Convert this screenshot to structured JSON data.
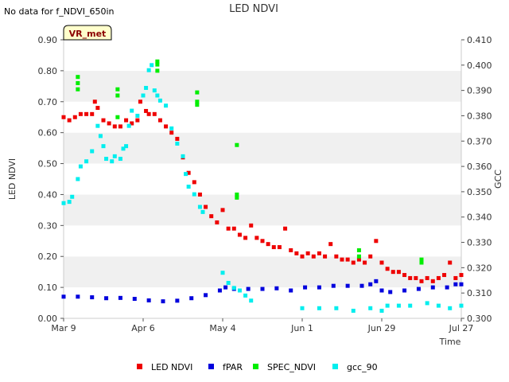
{
  "corner_note": "No data for f_NDVI_650in",
  "chart_data": {
    "type": "scatter",
    "title": "LED NDVI",
    "xlabel": "Time",
    "ylabel": "LED NDVI",
    "y2label": "GCC",
    "badge": "VR_met",
    "ylim": [
      0.0,
      0.9
    ],
    "y2lim": [
      0.3,
      0.41
    ],
    "xlim": [
      0,
      140
    ],
    "x_ticks": [
      {
        "label": "Mar 9",
        "day": 0
      },
      {
        "label": "Apr 6",
        "day": 28
      },
      {
        "label": "May 4",
        "day": 56
      },
      {
        "label": "Jun 1",
        "day": 84
      },
      {
        "label": "Jun 29",
        "day": 112
      },
      {
        "label": "Jul 27",
        "day": 140
      }
    ],
    "y_ticks": [
      "0.00",
      "0.10",
      "0.20",
      "0.30",
      "0.40",
      "0.50",
      "0.60",
      "0.70",
      "0.80",
      "0.90"
    ],
    "y2_ticks": [
      "0.300",
      "0.310",
      "0.320",
      "0.330",
      "0.340",
      "0.350",
      "0.360",
      "0.370",
      "0.380",
      "0.390",
      "0.400",
      "0.410"
    ],
    "series": [
      {
        "name": "LED NDVI",
        "color": "#ee0000",
        "axis": "left",
        "points": [
          [
            0,
            0.65
          ],
          [
            2,
            0.64
          ],
          [
            4,
            0.65
          ],
          [
            6,
            0.66
          ],
          [
            8,
            0.66
          ],
          [
            10,
            0.66
          ],
          [
            11,
            0.7
          ],
          [
            12,
            0.68
          ],
          [
            14,
            0.64
          ],
          [
            16,
            0.63
          ],
          [
            18,
            0.62
          ],
          [
            20,
            0.62
          ],
          [
            22,
            0.64
          ],
          [
            24,
            0.63
          ],
          [
            26,
            0.64
          ],
          [
            27,
            0.7
          ],
          [
            29,
            0.67
          ],
          [
            30,
            0.66
          ],
          [
            32,
            0.66
          ],
          [
            34,
            0.64
          ],
          [
            36,
            0.62
          ],
          [
            38,
            0.6
          ],
          [
            40,
            0.58
          ],
          [
            42,
            0.52
          ],
          [
            44,
            0.47
          ],
          [
            46,
            0.44
          ],
          [
            48,
            0.4
          ],
          [
            50,
            0.36
          ],
          [
            52,
            0.33
          ],
          [
            54,
            0.31
          ],
          [
            56,
            0.35
          ],
          [
            58,
            0.29
          ],
          [
            60,
            0.29
          ],
          [
            62,
            0.27
          ],
          [
            64,
            0.26
          ],
          [
            66,
            0.3
          ],
          [
            68,
            0.26
          ],
          [
            70,
            0.25
          ],
          [
            72,
            0.24
          ],
          [
            74,
            0.23
          ],
          [
            76,
            0.23
          ],
          [
            78,
            0.29
          ],
          [
            80,
            0.22
          ],
          [
            82,
            0.21
          ],
          [
            84,
            0.2
          ],
          [
            86,
            0.21
          ],
          [
            88,
            0.2
          ],
          [
            90,
            0.21
          ],
          [
            92,
            0.2
          ],
          [
            94,
            0.24
          ],
          [
            96,
            0.2
          ],
          [
            98,
            0.19
          ],
          [
            100,
            0.19
          ],
          [
            102,
            0.18
          ],
          [
            104,
            0.19
          ],
          [
            106,
            0.18
          ],
          [
            108,
            0.2
          ],
          [
            110,
            0.25
          ],
          [
            112,
            0.18
          ],
          [
            114,
            0.16
          ],
          [
            116,
            0.15
          ],
          [
            118,
            0.15
          ],
          [
            120,
            0.14
          ],
          [
            122,
            0.13
          ],
          [
            124,
            0.13
          ],
          [
            126,
            0.12
          ],
          [
            128,
            0.13
          ],
          [
            130,
            0.12
          ],
          [
            132,
            0.13
          ],
          [
            134,
            0.14
          ],
          [
            136,
            0.18
          ],
          [
            138,
            0.13
          ],
          [
            140,
            0.14
          ]
        ]
      },
      {
        "name": "fPAR",
        "color": "#0000dd",
        "axis": "left",
        "points": [
          [
            0,
            0.07
          ],
          [
            5,
            0.07
          ],
          [
            10,
            0.068
          ],
          [
            15,
            0.065
          ],
          [
            20,
            0.066
          ],
          [
            25,
            0.063
          ],
          [
            30,
            0.058
          ],
          [
            35,
            0.055
          ],
          [
            40,
            0.057
          ],
          [
            45,
            0.065
          ],
          [
            50,
            0.075
          ],
          [
            55,
            0.09
          ],
          [
            57,
            0.1
          ],
          [
            60,
            0.095
          ],
          [
            65,
            0.095
          ],
          [
            70,
            0.095
          ],
          [
            75,
            0.097
          ],
          [
            80,
            0.09
          ],
          [
            85,
            0.1
          ],
          [
            90,
            0.1
          ],
          [
            95,
            0.105
          ],
          [
            100,
            0.105
          ],
          [
            105,
            0.105
          ],
          [
            108,
            0.11
          ],
          [
            110,
            0.12
          ],
          [
            112,
            0.09
          ],
          [
            115,
            0.085
          ],
          [
            120,
            0.09
          ],
          [
            125,
            0.095
          ],
          [
            130,
            0.1
          ],
          [
            135,
            0.1
          ],
          [
            138,
            0.11
          ],
          [
            140,
            0.11
          ]
        ]
      },
      {
        "name": "SPEC_NDVI",
        "color": "#00ee00",
        "axis": "left",
        "points": [
          [
            5,
            0.78
          ],
          [
            5,
            0.76
          ],
          [
            5,
            0.74
          ],
          [
            19,
            0.74
          ],
          [
            19,
            0.72
          ],
          [
            19,
            0.65
          ],
          [
            33,
            0.83
          ],
          [
            33,
            0.82
          ],
          [
            33,
            0.8
          ],
          [
            47,
            0.73
          ],
          [
            47,
            0.7
          ],
          [
            47,
            0.69
          ],
          [
            61,
            0.56
          ],
          [
            61,
            0.4
          ],
          [
            61,
            0.39
          ],
          [
            104,
            0.22
          ],
          [
            104,
            0.2
          ],
          [
            126,
            0.19
          ],
          [
            126,
            0.18
          ]
        ]
      },
      {
        "name": "gcc_90",
        "color": "#00eeee",
        "axis": "right",
        "points": [
          [
            0,
            0.3455
          ],
          [
            2,
            0.346
          ],
          [
            3,
            0.348
          ],
          [
            5,
            0.355
          ],
          [
            6,
            0.36
          ],
          [
            8,
            0.362
          ],
          [
            10,
            0.366
          ],
          [
            12,
            0.376
          ],
          [
            13,
            0.372
          ],
          [
            14,
            0.368
          ],
          [
            15,
            0.363
          ],
          [
            17,
            0.362
          ],
          [
            18,
            0.364
          ],
          [
            20,
            0.363
          ],
          [
            21,
            0.367
          ],
          [
            22,
            0.368
          ],
          [
            23,
            0.376
          ],
          [
            24,
            0.382
          ],
          [
            26,
            0.38
          ],
          [
            28,
            0.388
          ],
          [
            29,
            0.391
          ],
          [
            30,
            0.398
          ],
          [
            31,
            0.4
          ],
          [
            32,
            0.39
          ],
          [
            33,
            0.388
          ],
          [
            34,
            0.386
          ],
          [
            36,
            0.384
          ],
          [
            38,
            0.375
          ],
          [
            40,
            0.369
          ],
          [
            42,
            0.364
          ],
          [
            43,
            0.357
          ],
          [
            44,
            0.352
          ],
          [
            46,
            0.349
          ],
          [
            48,
            0.344
          ],
          [
            49,
            0.342
          ],
          [
            56,
            0.318
          ],
          [
            58,
            0.314
          ],
          [
            60,
            0.312
          ],
          [
            62,
            0.311
          ],
          [
            64,
            0.309
          ],
          [
            66,
            0.307
          ],
          [
            84,
            0.304
          ],
          [
            90,
            0.304
          ],
          [
            96,
            0.304
          ],
          [
            102,
            0.303
          ],
          [
            108,
            0.304
          ],
          [
            112,
            0.303
          ],
          [
            114,
            0.305
          ],
          [
            118,
            0.305
          ],
          [
            122,
            0.305
          ],
          [
            128,
            0.306
          ],
          [
            132,
            0.305
          ],
          [
            136,
            0.304
          ],
          [
            140,
            0.305
          ]
        ]
      }
    ]
  }
}
